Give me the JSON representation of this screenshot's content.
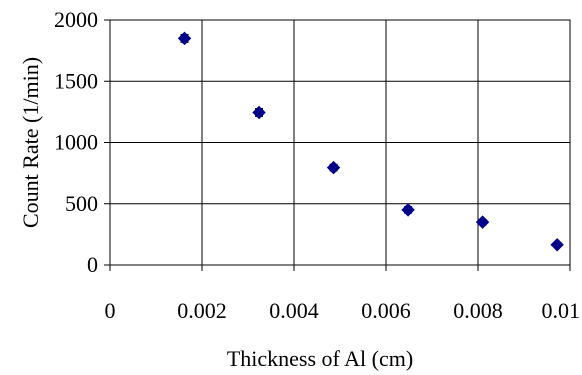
{
  "chart_data": {
    "type": "scatter",
    "title": "",
    "xlabel": "Thickness of Al (cm)",
    "ylabel": "Count Rate  (1/min)",
    "xlim": [
      0,
      0.01
    ],
    "ylim": [
      0,
      2000
    ],
    "x_ticks": [
      0,
      0.002,
      0.004,
      0.006,
      0.008,
      0.01
    ],
    "x_tick_labels": [
      "0",
      "0.002",
      "0.004",
      "0.006",
      "0.008",
      "0.01"
    ],
    "y_ticks": [
      0,
      500,
      1000,
      1500,
      2000
    ],
    "y_tick_labels": [
      "0",
      "500",
      "1000",
      "1500",
      "2000"
    ],
    "grid": true,
    "legend": "none",
    "marker_color": "#00008B",
    "series": [
      {
        "x": [
          0.00162,
          0.00324,
          0.00486,
          0.00648,
          0.0081,
          0.00972
        ],
        "y": [
          1850,
          1245,
          795,
          450,
          350,
          165
        ],
        "y_error": [
          30,
          30,
          25,
          25,
          20,
          15
        ]
      }
    ]
  }
}
